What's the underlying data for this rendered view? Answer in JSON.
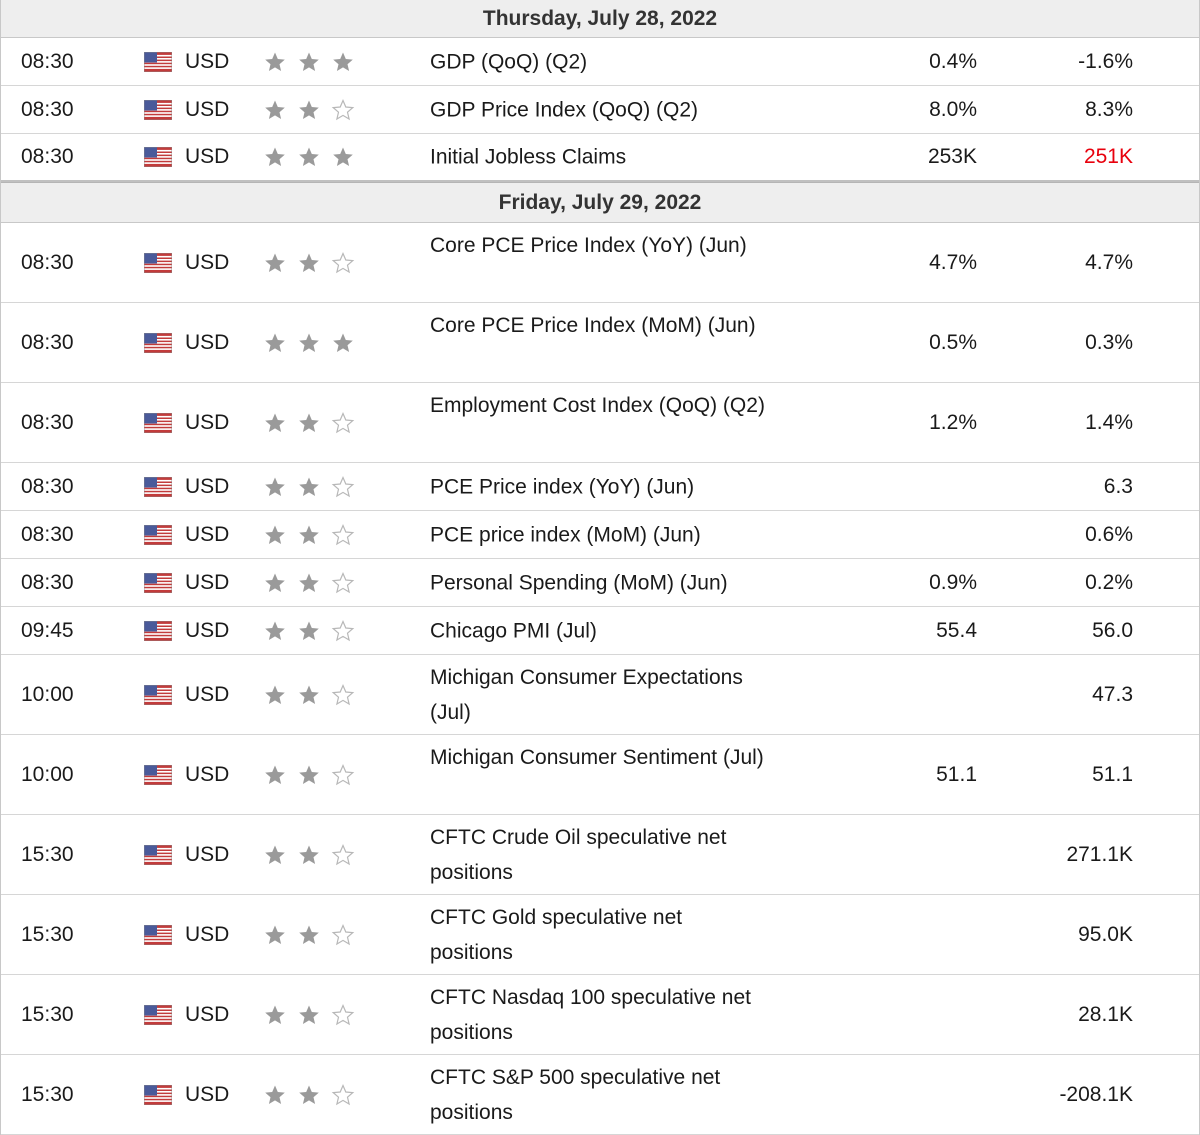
{
  "days": [
    {
      "date": "Thursday, July 28, 2022",
      "events": [
        {
          "time": "08:30",
          "currency": "USD",
          "importance": 3,
          "event": "GDP (QoQ) (Q2)",
          "forecast": "0.4%",
          "previous": "-1.6%",
          "previous_color": ""
        },
        {
          "time": "08:30",
          "currency": "USD",
          "importance": 2,
          "event": "GDP Price Index (QoQ) (Q2)",
          "forecast": "8.0%",
          "previous": "8.3%",
          "previous_color": ""
        },
        {
          "time": "08:30",
          "currency": "USD",
          "importance": 3,
          "event": "Initial Jobless Claims",
          "forecast": "253K",
          "previous": "251K",
          "previous_color": "#e8000d"
        }
      ]
    },
    {
      "date": "Friday, July 29, 2022",
      "events": [
        {
          "time": "08:30",
          "currency": "USD",
          "importance": 2,
          "event": "Core PCE Price Index (YoY) (Jun)",
          "forecast": "4.7%",
          "previous": "4.7%",
          "previous_color": ""
        },
        {
          "time": "08:30",
          "currency": "USD",
          "importance": 3,
          "event": "Core PCE Price Index (MoM) (Jun)",
          "forecast": "0.5%",
          "previous": "0.3%",
          "previous_color": ""
        },
        {
          "time": "08:30",
          "currency": "USD",
          "importance": 2,
          "event": "Employment Cost Index (QoQ) (Q2)",
          "forecast": "1.2%",
          "previous": "1.4%",
          "previous_color": ""
        },
        {
          "time": "08:30",
          "currency": "USD",
          "importance": 2,
          "event": "PCE Price index (YoY) (Jun)",
          "forecast": "",
          "previous": "6.3",
          "previous_color": ""
        },
        {
          "time": "08:30",
          "currency": "USD",
          "importance": 2,
          "event": "PCE price index (MoM) (Jun)",
          "forecast": "",
          "previous": "0.6%",
          "previous_color": ""
        },
        {
          "time": "08:30",
          "currency": "USD",
          "importance": 2,
          "event": "Personal Spending (MoM) (Jun)",
          "forecast": "0.9%",
          "previous": "0.2%",
          "previous_color": ""
        },
        {
          "time": "09:45",
          "currency": "USD",
          "importance": 2,
          "event": "Chicago PMI (Jul)",
          "forecast": "55.4",
          "previous": "56.0",
          "previous_color": ""
        },
        {
          "time": "10:00",
          "currency": "USD",
          "importance": 2,
          "event": "Michigan Consumer Expectations (Jul)",
          "forecast": "",
          "previous": "47.3",
          "previous_color": ""
        },
        {
          "time": "10:00",
          "currency": "USD",
          "importance": 2,
          "event": "Michigan Consumer Sentiment (Jul)",
          "forecast": "51.1",
          "previous": "51.1",
          "previous_color": ""
        },
        {
          "time": "15:30",
          "currency": "USD",
          "importance": 2,
          "event": "CFTC Crude Oil speculative net positions",
          "forecast": "",
          "previous": "271.1K",
          "previous_color": ""
        },
        {
          "time": "15:30",
          "currency": "USD",
          "importance": 2,
          "event": "CFTC Gold speculative net positions",
          "forecast": "",
          "previous": "95.0K",
          "previous_color": ""
        },
        {
          "time": "15:30",
          "currency": "USD",
          "importance": 2,
          "event": "CFTC Nasdaq 100 speculative net positions",
          "forecast": "",
          "previous": "28.1K",
          "previous_color": ""
        },
        {
          "time": "15:30",
          "currency": "USD",
          "importance": 2,
          "event": "CFTC S&P 500 speculative net positions",
          "forecast": "",
          "previous": "-208.1K",
          "previous_color": ""
        }
      ]
    }
  ],
  "icons": {
    "flag": "us-flag-icon",
    "star_filled": "star-filled-icon",
    "star_empty": "star-outline-icon"
  },
  "colors": {
    "star_filled": "#9a9a9a",
    "star_empty": "#b8b8b8",
    "highlight_previous": "#e8000d",
    "header_bg": "#eeeeee"
  }
}
